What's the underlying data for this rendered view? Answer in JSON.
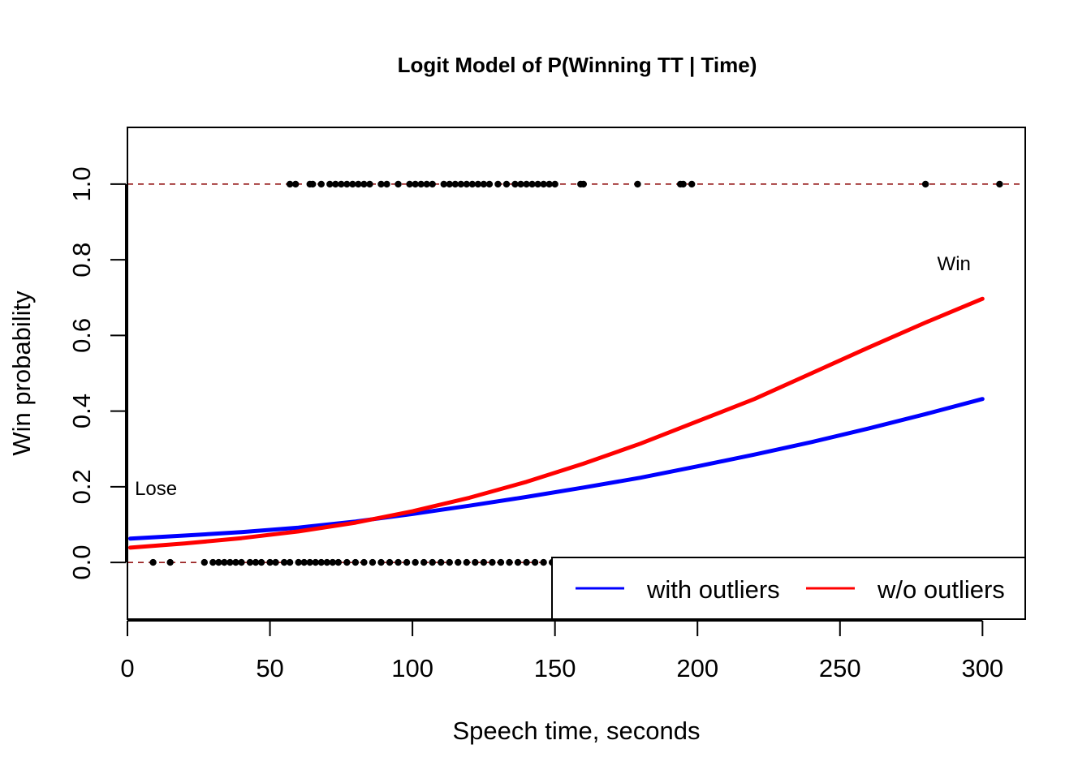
{
  "chart_data": {
    "type": "scatter",
    "title": "Logit Model of P(Winning TT | Time)",
    "xlabel": "Speech time, seconds",
    "ylabel": "Win probability",
    "xlim": [
      0,
      315
    ],
    "ylim": [
      -0.15,
      1.15
    ],
    "x_ticks": [
      0,
      50,
      100,
      150,
      200,
      250,
      300
    ],
    "y_ticks": [
      0.0,
      0.2,
      0.4,
      0.6,
      0.8,
      1.0
    ],
    "x_tick_labels": [
      "0",
      "50",
      "100",
      "150",
      "200",
      "250",
      "300"
    ],
    "y_tick_labels": [
      "0.0",
      "0.2",
      "0.4",
      "0.6",
      "0.8",
      "1.0"
    ],
    "reference_lines": [
      {
        "y": 0,
        "color": "#8b0000",
        "style": "dashed"
      },
      {
        "y": 1,
        "color": "#8b0000",
        "style": "dashed"
      }
    ],
    "annotations": [
      {
        "text": "Win",
        "x": 290,
        "y": 0.79
      },
      {
        "text": "Lose",
        "x": 10,
        "y": 0.195
      }
    ],
    "legend": {
      "position": "bottom-right",
      "entries": [
        {
          "label": "with outliers",
          "color": "#0000ff"
        },
        {
          "label": "w/o outliers",
          "color": "#ff0000"
        }
      ]
    },
    "series": [
      {
        "name": "with outliers",
        "type": "line",
        "color": "#0000ff",
        "x": [
          1,
          20,
          40,
          60,
          80,
          100,
          120,
          140,
          160,
          180,
          200,
          220,
          240,
          260,
          280,
          300
        ],
        "y": [
          0.063,
          0.071,
          0.08,
          0.092,
          0.108,
          0.128,
          0.15,
          0.173,
          0.198,
          0.224,
          0.254,
          0.285,
          0.318,
          0.354,
          0.392,
          0.432
        ]
      },
      {
        "name": "w/o outliers",
        "type": "line",
        "color": "#ff0000",
        "x": [
          1,
          20,
          40,
          60,
          80,
          100,
          120,
          140,
          160,
          180,
          200,
          220,
          240,
          260,
          280,
          300
        ],
        "y": [
          0.039,
          0.05,
          0.064,
          0.082,
          0.105,
          0.135,
          0.171,
          0.213,
          0.261,
          0.314,
          0.373,
          0.432,
          0.5,
          0.568,
          0.634,
          0.697
        ]
      },
      {
        "type": "points",
        "color": "#000000",
        "x": [
          57,
          59,
          64,
          65,
          68,
          71,
          73,
          75,
          77,
          79,
          81,
          83,
          85,
          89,
          91,
          95,
          99,
          101,
          103,
          105,
          107,
          111,
          113,
          115,
          117,
          119,
          121,
          123,
          125,
          127,
          130,
          133,
          136,
          138,
          140,
          142,
          144,
          146,
          148,
          150,
          159,
          160,
          179,
          194,
          195,
          198,
          280,
          306
        ],
        "y": [
          1,
          1,
          1,
          1,
          1,
          1,
          1,
          1,
          1,
          1,
          1,
          1,
          1,
          1,
          1,
          1,
          1,
          1,
          1,
          1,
          1,
          1,
          1,
          1,
          1,
          1,
          1,
          1,
          1,
          1,
          1,
          1,
          1,
          1,
          1,
          1,
          1,
          1,
          1,
          1,
          1,
          1,
          1,
          1,
          1,
          1,
          1,
          1
        ]
      },
      {
        "type": "points",
        "color": "#000000",
        "x": [
          9,
          15,
          27,
          30,
          32,
          34,
          36,
          38,
          40,
          43,
          45,
          47,
          50,
          52,
          55,
          57,
          60,
          62,
          64,
          66,
          68,
          70,
          72,
          74,
          77,
          80,
          83,
          86,
          89,
          92,
          95,
          98,
          101,
          104,
          107,
          110,
          113,
          116,
          119,
          122,
          125,
          128,
          131,
          134,
          137,
          140,
          143,
          146,
          149
        ],
        "y": [
          0,
          0,
          0,
          0,
          0,
          0,
          0,
          0,
          0,
          0,
          0,
          0,
          0,
          0,
          0,
          0,
          0,
          0,
          0,
          0,
          0,
          0,
          0,
          0,
          0,
          0,
          0,
          0,
          0,
          0,
          0,
          0,
          0,
          0,
          0,
          0,
          0,
          0,
          0,
          0,
          0,
          0,
          0,
          0,
          0,
          0,
          0,
          0,
          0
        ]
      }
    ]
  }
}
